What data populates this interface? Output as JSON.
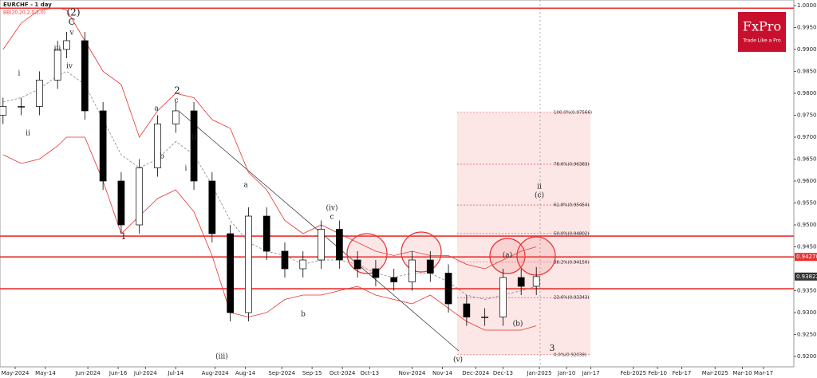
{
  "chart_data": {
    "type": "candlestick",
    "title": "EURCHF - 1 day",
    "subtitle": "BB(20,20,2,0,2,0)",
    "logo": "FxPro",
    "tagline": "Trade Like a Pro",
    "x": [
      1,
      7,
      13,
      19,
      22,
      28,
      34,
      40,
      46,
      52,
      58,
      64,
      70,
      76,
      82,
      88,
      94,
      100,
      106,
      112,
      118,
      124,
      130,
      136,
      142,
      148,
      154,
      160,
      166,
      172,
      177
    ],
    "open": [
      0.975,
      0.977,
      0.977,
      0.983,
      0.99,
      0.992,
      0.976,
      0.96,
      0.95,
      0.963,
      0.973,
      0.976,
      0.96,
      0.948,
      0.93,
      0.952,
      0.944,
      0.94,
      0.942,
      0.949,
      0.942,
      0.94,
      0.938,
      0.937,
      0.942,
      0.939,
      0.932,
      0.929,
      0.929,
      0.938,
      0.936
    ],
    "high": [
      0.979,
      0.979,
      0.985,
      0.992,
      0.994,
      0.994,
      0.978,
      0.962,
      0.965,
      0.975,
      0.978,
      0.978,
      0.962,
      0.95,
      0.954,
      0.954,
      0.946,
      0.944,
      0.951,
      0.951,
      0.944,
      0.942,
      0.94,
      0.944,
      0.944,
      0.941,
      0.934,
      0.931,
      0.94,
      0.94,
      0.9404
    ],
    "low": [
      0.973,
      0.975,
      0.975,
      0.981,
      0.988,
      0.974,
      0.958,
      0.948,
      0.948,
      0.961,
      0.971,
      0.958,
      0.946,
      0.928,
      0.928,
      0.942,
      0.938,
      0.938,
      0.94,
      0.94,
      0.938,
      0.936,
      0.935,
      0.935,
      0.937,
      0.93,
      0.927,
      0.927,
      0.927,
      0.934,
      0.934
    ],
    "close": [
      0.977,
      0.977,
      0.983,
      0.99,
      0.992,
      0.976,
      0.96,
      0.95,
      0.963,
      0.973,
      0.976,
      0.96,
      0.948,
      0.93,
      0.952,
      0.944,
      0.94,
      0.942,
      0.949,
      0.942,
      0.94,
      0.938,
      0.937,
      0.942,
      0.939,
      0.932,
      0.929,
      0.929,
      0.938,
      0.936,
      0.9382
    ],
    "series": [
      {
        "name": "upper",
        "color": "#e8312f",
        "values": [
          0.99,
          0.996,
          0.999,
          0.9995,
          0.999,
          0.992,
          0.985,
          0.982,
          0.97,
          0.976,
          0.98,
          0.979,
          0.974,
          0.972,
          0.962,
          0.958,
          0.951,
          0.948,
          0.95,
          0.948,
          0.946,
          0.944,
          0.943,
          0.944,
          0.943,
          0.943,
          0.941,
          0.94,
          0.942,
          0.944,
          0.945
        ]
      },
      {
        "name": "middle",
        "color": "#888888",
        "values": [
          0.978,
          0.979,
          0.981,
          0.984,
          0.985,
          0.982,
          0.974,
          0.966,
          0.963,
          0.965,
          0.969,
          0.966,
          0.959,
          0.951,
          0.946,
          0.944,
          0.943,
          0.941,
          0.942,
          0.942,
          0.941,
          0.939,
          0.938,
          0.939,
          0.939,
          0.937,
          0.934,
          0.933,
          0.934,
          0.935,
          0.936
        ]
      },
      {
        "name": "lower",
        "color": "#e8312f",
        "values": [
          0.966,
          0.964,
          0.965,
          0.968,
          0.97,
          0.97,
          0.96,
          0.948,
          0.952,
          0.956,
          0.958,
          0.953,
          0.943,
          0.93,
          0.929,
          0.93,
          0.933,
          0.934,
          0.934,
          0.935,
          0.936,
          0.934,
          0.933,
          0.932,
          0.934,
          0.931,
          0.928,
          0.926,
          0.926,
          0.926,
          0.927
        ]
      }
    ],
    "levels": [
      0.9994,
      0.94745,
      0.9427,
      0.93545
    ],
    "fib": [
      {
        "value": 0.97566,
        "label": "100.0%(0.97566)"
      },
      {
        "value": 0.96383,
        "label": "78.6%(0.96383)"
      },
      {
        "value": 0.95454,
        "label": "61.8%(0.95454)"
      },
      {
        "value": 0.94802,
        "label": "50.0%(0.94802)"
      },
      {
        "value": 0.9415,
        "label": "38.2%(0.94150)"
      },
      {
        "value": 0.93343,
        "label": "23.6%(0.93343)"
      },
      {
        "value": 0.92039,
        "label": "0.0%(0.92039)"
      }
    ],
    "price_labels": [
      {
        "value": 0.9427,
        "label": "0.94270"
      },
      {
        "value": 0.93822,
        "label": "0.93822"
      }
    ],
    "annotations": [
      "(2)",
      "C",
      "v",
      "iii",
      "iv",
      "i",
      "ii",
      "1",
      "2",
      "c",
      "a",
      "b",
      "ii",
      "i",
      "(iii)",
      "(iv)",
      "c",
      "a",
      "b",
      "(v)",
      "(a)",
      "(b)",
      "ii",
      "(c)",
      "3"
    ],
    "xlim": [
      0,
      262
    ],
    "ylim": [
      0.91764,
      1.00127
    ],
    "yticks": [
      {
        "value": 1.0,
        "label": "1.00000"
      },
      {
        "value": 0.995,
        "label": "0.99500"
      },
      {
        "value": 0.99,
        "label": "0.99000"
      },
      {
        "value": 0.985,
        "label": "0.98500"
      },
      {
        "value": 0.98,
        "label": "0.98000"
      },
      {
        "value": 0.975,
        "label": "0.97500"
      },
      {
        "value": 0.97,
        "label": "0.97000"
      },
      {
        "value": 0.965,
        "label": "0.96500"
      },
      {
        "value": 0.96,
        "label": "0.96000"
      },
      {
        "value": 0.955,
        "label": "0.95500"
      },
      {
        "value": 0.95,
        "label": "0.95000"
      },
      {
        "value": 0.945,
        "label": "0.94500"
      },
      {
        "value": 0.935,
        "label": "0.93500"
      },
      {
        "value": 0.93,
        "label": "0.93000"
      },
      {
        "value": 0.925,
        "label": "0.92500"
      },
      {
        "value": 0.92,
        "label": "0.92000"
      }
    ],
    "xticks": [
      {
        "value": 5,
        "label": "May-2024"
      },
      {
        "value": 15,
        "label": "May-14"
      },
      {
        "value": 29,
        "label": "Jun-2024"
      },
      {
        "value": 39,
        "label": "Jun-16"
      },
      {
        "value": 48,
        "label": "Jul-2024"
      },
      {
        "value": 58,
        "label": "Jul-14"
      },
      {
        "value": 71,
        "label": "Aug-2024"
      },
      {
        "value": 81,
        "label": "Aug-14"
      },
      {
        "value": 93,
        "label": "Sep-2024"
      },
      {
        "value": 103,
        "label": "Sep-15"
      },
      {
        "value": 113,
        "label": "Oct-2024"
      },
      {
        "value": 122,
        "label": "Oct-13"
      },
      {
        "value": 136,
        "label": "Nov-2024"
      },
      {
        "value": 146,
        "label": "Nov-14"
      },
      {
        "value": 157,
        "label": "Dec-2024"
      },
      {
        "value": 166,
        "label": "Dec-13"
      },
      {
        "value": 178,
        "label": "Jan-2025"
      },
      {
        "value": 187,
        "label": "Jan-10"
      },
      {
        "value": 195,
        "label": "Jan-17"
      },
      {
        "value": 209,
        "label": "Feb-2025"
      },
      {
        "value": 217,
        "label": "Feb-10"
      },
      {
        "value": 225,
        "label": "Feb-17"
      },
      {
        "value": 236,
        "label": "Mar-2025"
      },
      {
        "value": 245,
        "label": "Mar-10"
      },
      {
        "value": 252,
        "label": "Mar-17"
      }
    ]
  }
}
